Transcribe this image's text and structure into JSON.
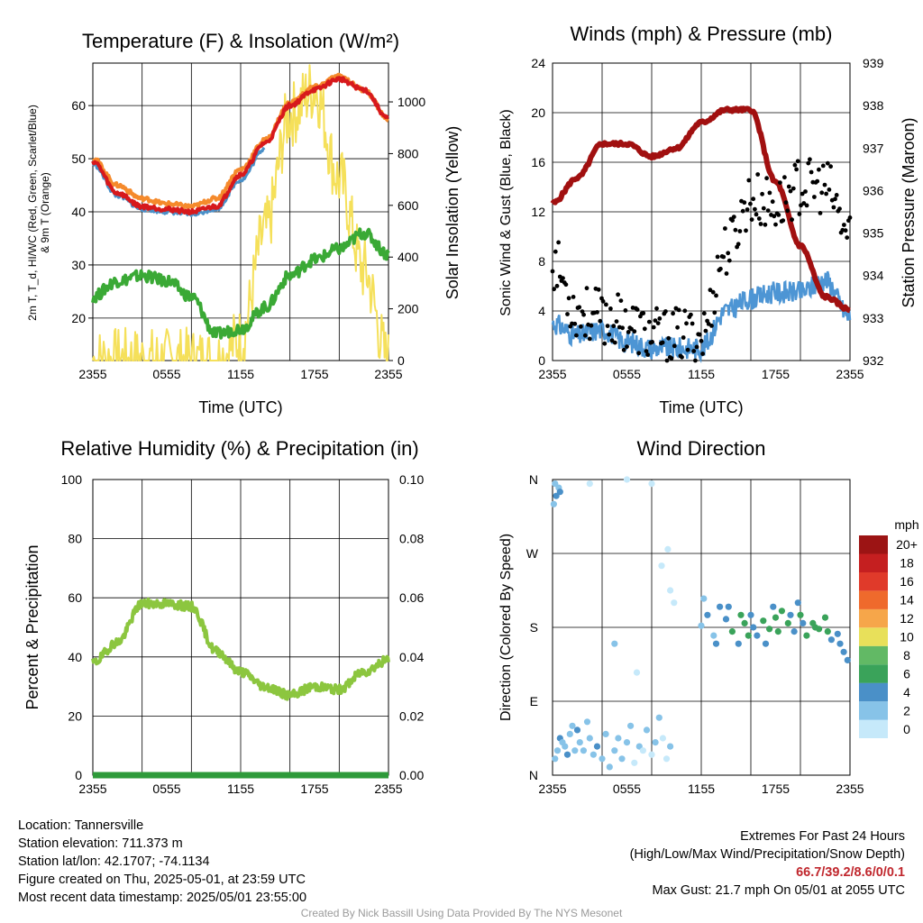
{
  "colors": {
    "temp": "#d7191c",
    "dewpoint": "#3aa935",
    "windchill": "#4a90c8",
    "temp9m": "#f58a2c",
    "insolation": "#f5e05a",
    "wind": "#4d95d4",
    "gust": "#000000",
    "pressure": "#a11010",
    "rh": "#8cc63f",
    "precip": "#2e9a3a"
  },
  "time_ticks": [
    "2355",
    "0555",
    "1155",
    "1755",
    "2355"
  ],
  "panels": {
    "temp": {
      "title": "Temperature (F) & Insolation (W/m²)",
      "ylabel_left": [
        "2m T, T_d, HI/WC (Red, Green, Scarlet/Blue)",
        "& 9m T (Orange)"
      ],
      "ylabel_right": "Solar Insolation (Yellow)",
      "xlabel": "Time (UTC)",
      "yticks_left": [
        "20",
        "30",
        "40",
        "50",
        "60"
      ],
      "yticks_right": [
        "0",
        "200",
        "400",
        "600",
        "800",
        "1000"
      ]
    },
    "wind": {
      "title": "Winds (mph) & Pressure (mb)",
      "ylabel_left": "Sonic Wind & Gust (Blue, Black)",
      "ylabel_right": "Station Pressure (Maroon)",
      "xlabel": "Time (UTC)",
      "yticks_left": [
        "0",
        "4",
        "8",
        "12",
        "16",
        "20",
        "24"
      ],
      "yticks_right": [
        "932",
        "933",
        "934",
        "935",
        "936",
        "937",
        "938",
        "939"
      ]
    },
    "rh": {
      "title": "Relative Humidity (%) & Precipitation (in)",
      "ylabel_left": "Percent & Precipitation",
      "yticks_left": [
        "0",
        "20",
        "40",
        "60",
        "80",
        "100"
      ],
      "yticks_right": [
        "0.00",
        "0.02",
        "0.04",
        "0.06",
        "0.08",
        "0.10"
      ]
    },
    "dir": {
      "title": "Wind Direction",
      "ylabel_left": "Direction (Colored By Speed)",
      "yticks_left": [
        "N",
        "E",
        "S",
        "W",
        "N"
      ],
      "colorbar_unit": "mph",
      "colorbar_labels": [
        "0",
        "2",
        "4",
        "6",
        "8",
        "10",
        "12",
        "14",
        "16",
        "18",
        "20+"
      ],
      "colorbar_colors": [
        "#c6e9fa",
        "#87c3e8",
        "#4a90c8",
        "#3aa35a",
        "#62b965",
        "#e8e05a",
        "#f6a64a",
        "#ef6a2c",
        "#e03a2a",
        "#c51f20",
        "#9c1414"
      ]
    }
  },
  "chart_data": [
    {
      "type": "line",
      "title": "Temperature (F) & Insolation (W/m²)",
      "xlabel": "Time (UTC)",
      "ylabel": "2m T, T_d, HI/WC (Red, Green, Scarlet/Blue) & 9m T (Orange)",
      "y2label": "Solar Insolation (Yellow)",
      "x_hours": [
        0,
        2,
        4,
        6,
        8,
        10,
        12,
        14,
        16,
        18,
        20,
        22,
        24
      ],
      "ylim": [
        12,
        68
      ],
      "y2lim": [
        0,
        1150
      ],
      "grid": true,
      "series": [
        {
          "name": "2m T",
          "axis": "left",
          "values": [
            49.5,
            43.5,
            41,
            40.5,
            40,
            41,
            47,
            53,
            60,
            63,
            65,
            63,
            57.5
          ]
        },
        {
          "name": "9m T",
          "axis": "left",
          "values": [
            50,
            45,
            42.5,
            41.5,
            41,
            42.5,
            48,
            53.5,
            60.5,
            63.5,
            65.5,
            63,
            57.5
          ]
        },
        {
          "name": "HI/WC",
          "axis": "left",
          "values": [
            49,
            43,
            40.5,
            40,
            39.5,
            40.5,
            46,
            52,
            null,
            null,
            null,
            null,
            null
          ]
        },
        {
          "name": "Dew point",
          "axis": "left",
          "values": [
            24,
            27,
            28,
            27,
            24,
            17,
            18,
            22,
            28,
            31,
            33,
            36,
            32
          ]
        },
        {
          "name": "Solar insolation",
          "axis": "right",
          "values": [
            0,
            0,
            0,
            0,
            0,
            0,
            80,
            500,
            950,
            1050,
            700,
            350,
            0
          ]
        }
      ]
    },
    {
      "type": "line",
      "title": "Winds (mph) & Pressure (mb)",
      "xlabel": "Time (UTC)",
      "ylabel": "Sonic Wind & Gust (Blue, Black)",
      "y2label": "Station Pressure (Maroon)",
      "x_hours": [
        0,
        2,
        4,
        6,
        8,
        10,
        12,
        14,
        16,
        18,
        20,
        22,
        24
      ],
      "ylim": [
        0,
        24
      ],
      "y2lim": [
        932,
        939
      ],
      "grid": true,
      "series": [
        {
          "name": "Sonic wind",
          "axis": "left",
          "values": [
            3,
            2,
            2.5,
            1.5,
            1,
            1,
            1,
            4,
            5,
            5.5,
            5.5,
            6.5,
            3.5
          ]
        },
        {
          "name": "Gust",
          "axis": "left",
          "values": [
            8,
            4,
            3.5,
            3,
            2,
            2,
            2,
            9,
            13,
            12.5,
            14,
            14,
            10
          ]
        },
        {
          "name": "Station pressure",
          "axis": "right",
          "values": [
            935.7,
            936.3,
            937.1,
            937.1,
            936.8,
            937.0,
            937.6,
            937.9,
            937.9,
            936.2,
            934.7,
            933.5,
            933.2
          ]
        }
      ]
    },
    {
      "type": "line",
      "title": "Relative Humidity (%) & Precipitation (in)",
      "ylabel": "Percent & Precipitation",
      "x_hours": [
        0,
        2,
        4,
        6,
        8,
        10,
        12,
        14,
        16,
        18,
        20,
        22,
        24
      ],
      "ylim": [
        0,
        100
      ],
      "y2lim": [
        0,
        0.1
      ],
      "grid": true,
      "series": [
        {
          "name": "Relative humidity",
          "axis": "left",
          "values": [
            38,
            45,
            58,
            58,
            57,
            42,
            35,
            30,
            27,
            30,
            29,
            35,
            39
          ]
        },
        {
          "name": "Precipitation",
          "axis": "right",
          "values": [
            0,
            0,
            0,
            0,
            0,
            0,
            0,
            0,
            0,
            0,
            0,
            0,
            0
          ]
        }
      ]
    },
    {
      "type": "scatter",
      "title": "Wind Direction",
      "ylabel": "Direction (Colored By Speed)",
      "ylim": [
        0,
        360
      ],
      "points": [
        [
          0.2,
          20,
          2
        ],
        [
          0.4,
          30,
          3
        ],
        [
          0.6,
          45,
          4
        ],
        [
          0.8,
          40,
          3
        ],
        [
          1.0,
          35,
          2
        ],
        [
          1.2,
          25,
          4
        ],
        [
          1.4,
          50,
          3
        ],
        [
          1.6,
          60,
          2
        ],
        [
          1.8,
          30,
          2
        ],
        [
          2.0,
          55,
          4
        ],
        [
          2.2,
          40,
          3
        ],
        [
          2.5,
          30,
          2
        ],
        [
          2.8,
          65,
          3
        ],
        [
          3.0,
          45,
          2
        ],
        [
          3.3,
          25,
          3
        ],
        [
          3.6,
          35,
          4
        ],
        [
          4.0,
          20,
          2
        ],
        [
          4.3,
          50,
          3
        ],
        [
          4.6,
          10,
          2
        ],
        [
          5.0,
          30,
          3
        ],
        [
          5.3,
          45,
          2
        ],
        [
          5.6,
          20,
          3
        ],
        [
          6.0,
          40,
          2
        ],
        [
          6.3,
          60,
          3
        ],
        [
          6.6,
          15,
          1
        ],
        [
          7.0,
          35,
          2
        ],
        [
          7.3,
          30,
          1
        ],
        [
          7.6,
          55,
          2
        ],
        [
          8.0,
          25,
          1
        ],
        [
          8.3,
          40,
          2
        ],
        [
          8.6,
          70,
          3
        ],
        [
          8.9,
          45,
          1
        ],
        [
          9.2,
          20,
          1
        ],
        [
          9.5,
          35,
          2
        ],
        [
          0.1,
          330,
          3
        ],
        [
          0.3,
          340,
          4
        ],
        [
          0.5,
          350,
          3
        ],
        [
          0.2,
          355,
          2
        ],
        [
          0.6,
          345,
          4
        ],
        [
          3.0,
          355,
          1
        ],
        [
          6.0,
          360,
          1
        ],
        [
          8.0,
          355,
          1
        ],
        [
          5.0,
          160,
          2
        ],
        [
          6.8,
          125,
          1
        ],
        [
          8.8,
          255,
          1
        ],
        [
          9.5,
          225,
          1
        ],
        [
          9.8,
          210,
          1
        ],
        [
          9.3,
          275,
          1
        ],
        [
          12.0,
          182,
          3
        ],
        [
          12.5,
          195,
          4
        ],
        [
          13.0,
          170,
          3
        ],
        [
          13.5,
          205,
          4
        ],
        [
          14.0,
          190,
          5
        ],
        [
          14.5,
          175,
          6
        ],
        [
          15.0,
          160,
          4
        ],
        [
          15.5,
          185,
          6
        ],
        [
          16.0,
          195,
          5
        ],
        [
          16.5,
          170,
          4
        ],
        [
          17.0,
          188,
          6
        ],
        [
          17.5,
          178,
          7
        ],
        [
          18.0,
          192,
          6
        ],
        [
          18.5,
          200,
          7
        ],
        [
          19.0,
          185,
          6
        ],
        [
          19.5,
          175,
          5
        ],
        [
          20.0,
          195,
          7
        ],
        [
          20.5,
          170,
          6
        ],
        [
          21.0,
          185,
          7
        ],
        [
          21.5,
          178,
          6
        ],
        [
          22.0,
          192,
          6
        ],
        [
          22.5,
          165,
          5
        ],
        [
          23.0,
          172,
          4
        ],
        [
          23.5,
          150,
          4
        ],
        [
          12.2,
          215,
          2
        ],
        [
          13.2,
          160,
          4
        ],
        [
          14.2,
          205,
          5
        ],
        [
          15.2,
          195,
          6
        ],
        [
          16.2,
          180,
          4
        ],
        [
          17.2,
          160,
          5
        ],
        [
          18.2,
          175,
          6
        ],
        [
          19.2,
          195,
          5
        ],
        [
          20.2,
          185,
          4
        ],
        [
          21.2,
          180,
          7
        ],
        [
          22.2,
          175,
          6
        ],
        [
          23.2,
          160,
          5
        ],
        [
          23.8,
          140,
          4
        ],
        [
          19.8,
          210,
          4
        ],
        [
          17.8,
          205,
          5
        ],
        [
          15.8,
          170,
          6
        ]
      ]
    }
  ],
  "info": {
    "location": "Location: Tannersville",
    "elevation": "Station elevation: 711.373 m",
    "latlon": "Station lat/lon: 42.1707; -74.1134",
    "created": "Figure created on Thu, 2025-05-01, at 23:59 UTC",
    "recent": "Most recent data timestamp: 2025/05/01 23:55:00"
  },
  "extremes": {
    "title": "Extremes For Past 24 Hours",
    "legend": "(High/Low/Max Wind/Precipitation/Snow Depth)",
    "values": "66.7/39.2/8.6/0/0.1",
    "gust": "Max Gust: 21.7 mph On 05/01 at 2055 UTC"
  },
  "credit": "Created By Nick Bassill Using Data Provided By The NYS Mesonet"
}
